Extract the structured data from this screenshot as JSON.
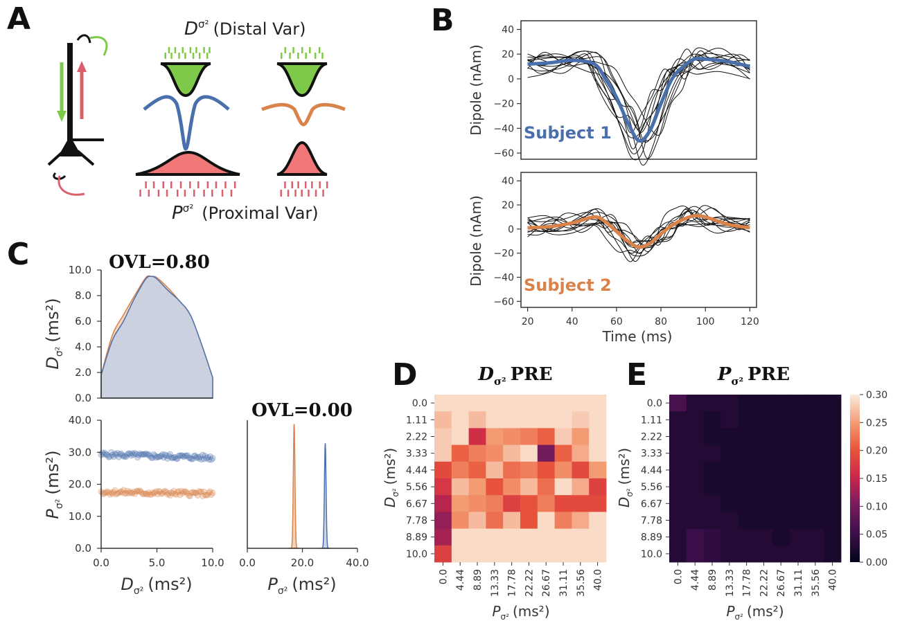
{
  "panels": {
    "A": {
      "label": "A",
      "distal_title_main": "D",
      "distal_title_sub": "σ²",
      "distal_title_rest": "(Distal Var)",
      "proximal_title_main": "P",
      "proximal_title_sub": "σ²",
      "proximal_title_rest": "(Proximal Var)"
    },
    "B": {
      "label": "B",
      "ylabel": "Dipole (nAm)",
      "xlabel": "Time (ms)",
      "subject1_label": "Subject 1",
      "subject2_label": "Subject 2",
      "yticks": [
        "40",
        "20",
        "0",
        "−20",
        "−40",
        "−60"
      ],
      "xticks": [
        "20",
        "40",
        "60",
        "80",
        "100",
        "120"
      ]
    },
    "C": {
      "label": "C",
      "ovl_top": "OVL=0.80",
      "ovl_right": "OVL=0.00",
      "top_ylabel_main": "D",
      "top_ylabel_sub": "σ²",
      "top_ylabel_unit": "(ms²)",
      "bottom_ylabel_main": "P",
      "bottom_ylabel_sub": "σ²",
      "bottom_ylabel_unit": "(ms²)",
      "xlabel_left_main": "D",
      "xlabel_left_sub": "σ²",
      "xlabel_left_unit": "(ms²)",
      "xlabel_right_main": "P",
      "xlabel_right_sub": "σ²",
      "xlabel_right_unit": "(ms²)",
      "top_yticks": [
        "10.0",
        "8.0",
        "6.0",
        "4.0",
        "2.0",
        "0.0"
      ],
      "bottom_yticks": [
        "40.0",
        "30.0",
        "20.0",
        "10.0",
        "0.0"
      ],
      "left_xticks": [
        "0.0",
        "5.0",
        "10.0"
      ],
      "right_xticks": [
        "0.0",
        "20.0",
        "40.0"
      ]
    },
    "D": {
      "label": "D",
      "title_main": "D",
      "title_sub": "σ²",
      "title_rest": "PRE",
      "ylabel_main": "D",
      "ylabel_sub": "σ²",
      "ylabel_unit": "(ms²)",
      "xlabel_main": "P",
      "xlabel_sub": "σ²",
      "xlabel_unit": "(ms²)"
    },
    "E": {
      "label": "E",
      "title_main": "P",
      "title_sub": "σ²",
      "title_rest": "PRE",
      "ylabel_main": "D",
      "ylabel_sub": "σ²",
      "ylabel_unit": "(ms²)",
      "xlabel_main": "P",
      "xlabel_sub": "σ²",
      "xlabel_unit": "(ms²)",
      "colorbar_ticks": [
        "0.30",
        "0.25",
        "0.20",
        "0.15",
        "0.10",
        "0.05",
        "0.00"
      ]
    }
  },
  "colors": {
    "blue": "#4a6fad",
    "orange": "#d9824a",
    "green": "#7fc94a",
    "red": "#d9606a",
    "dark": "#111111"
  },
  "chart_data": [
    {
      "type": "line",
      "panel": "B-top",
      "xlabel": "Time (ms)",
      "ylabel": "Dipole (nAm)",
      "xlim": [
        17,
        123
      ],
      "ylim": [
        -65,
        47
      ],
      "series": [
        {
          "name": "Subject 1",
          "x": [
            20,
            30,
            40,
            50,
            55,
            60,
            65,
            70,
            75,
            80,
            85,
            90,
            95,
            100,
            110,
            120
          ],
          "y": [
            12,
            13,
            15,
            12,
            0,
            -15,
            -35,
            -50,
            -42,
            -20,
            0,
            10,
            16,
            16,
            14,
            10
          ]
        }
      ]
    },
    {
      "type": "line",
      "panel": "B-bottom",
      "xlabel": "Time (ms)",
      "ylabel": "Dipole (nAm)",
      "xlim": [
        17,
        123
      ],
      "ylim": [
        -65,
        47
      ],
      "series": [
        {
          "name": "Subject 2",
          "x": [
            20,
            30,
            40,
            50,
            55,
            60,
            65,
            70,
            75,
            80,
            85,
            90,
            95,
            100,
            110,
            120
          ],
          "y": [
            1,
            2,
            5,
            10,
            6,
            -2,
            -10,
            -15,
            -12,
            -4,
            3,
            8,
            11,
            10,
            4,
            1
          ]
        }
      ]
    },
    {
      "type": "area",
      "panel": "C-top",
      "xlim": [
        0,
        10
      ],
      "ylim": [
        0,
        10
      ],
      "series": [
        {
          "x": [
            0,
            1,
            2,
            3,
            4,
            4.5,
            5,
            6,
            7,
            8,
            9,
            10
          ],
          "y": [
            1.8,
            4.5,
            6.0,
            7.8,
            9.3,
            9.5,
            9.3,
            8.4,
            7.6,
            6.5,
            4.2,
            1.6
          ]
        },
        {
          "x": [
            0,
            1,
            2,
            3,
            4,
            4.5,
            5,
            6,
            7,
            8,
            9,
            10
          ],
          "y": [
            1.8,
            4.9,
            6.5,
            8.0,
            9.4,
            9.5,
            9.4,
            8.6,
            7.6,
            6.4,
            4.2,
            1.6
          ]
        }
      ]
    },
    {
      "type": "scatter",
      "panel": "C-bottom-left",
      "xlim": [
        0,
        10
      ],
      "ylim": [
        0,
        40
      ],
      "series": [
        {
          "x": [
            0,
            10
          ],
          "y": [
            29.3,
            28.3
          ]
        },
        {
          "x": [
            0,
            10
          ],
          "y": [
            17.6,
            17.0
          ]
        }
      ]
    },
    {
      "type": "area",
      "panel": "C-bottom-right",
      "xlim": [
        0,
        40
      ],
      "series": [
        {
          "center": 17.0,
          "width": 0.6,
          "peak_fraction": 0.97
        },
        {
          "center": 28.3,
          "width": 0.6,
          "peak_fraction": 0.82
        }
      ]
    },
    {
      "type": "heatmap",
      "panel": "D",
      "x_categories": [
        "0.0",
        "4.44",
        "8.89",
        "13.33",
        "17.78",
        "22.22",
        "26.67",
        "31.11",
        "35.56",
        "40.0"
      ],
      "y_categories": [
        "0.0",
        "1.11",
        "2.22",
        "3.33",
        "4.44",
        "5.56",
        "6.67",
        "7.78",
        "8.89",
        "10.0"
      ],
      "vmin": 0,
      "vmax": 0.3,
      "values": [
        [
          0.29,
          0.29,
          0.29,
          0.29,
          0.29,
          0.29,
          0.29,
          0.29,
          0.29,
          0.29
        ],
        [
          0.27,
          0.29,
          0.27,
          0.29,
          0.29,
          0.29,
          0.29,
          0.29,
          0.28,
          0.29
        ],
        [
          0.28,
          0.29,
          0.16,
          0.25,
          0.24,
          0.23,
          0.21,
          0.28,
          0.25,
          0.29
        ],
        [
          0.28,
          0.21,
          0.23,
          0.24,
          0.27,
          0.29,
          0.1,
          0.21,
          0.26,
          0.29
        ],
        [
          0.19,
          0.23,
          0.21,
          0.27,
          0.22,
          0.23,
          0.2,
          0.24,
          0.19,
          0.25
        ],
        [
          0.17,
          0.27,
          0.25,
          0.2,
          0.24,
          0.27,
          0.22,
          0.29,
          0.26,
          0.18
        ],
        [
          0.14,
          0.25,
          0.24,
          0.23,
          0.18,
          0.2,
          0.23,
          0.19,
          0.19,
          0.19
        ],
        [
          0.12,
          0.24,
          0.27,
          0.22,
          0.27,
          0.2,
          0.29,
          0.23,
          0.26,
          0.29
        ],
        [
          0.13,
          0.29,
          0.29,
          0.29,
          0.29,
          0.29,
          0.29,
          0.29,
          0.29,
          0.29
        ],
        [
          0.18,
          0.29,
          0.29,
          0.29,
          0.29,
          0.29,
          0.29,
          0.29,
          0.29,
          0.29
        ]
      ]
    },
    {
      "type": "heatmap",
      "panel": "E",
      "x_categories": [
        "0.0",
        "4.44",
        "8.89",
        "13.33",
        "17.78",
        "22.22",
        "26.67",
        "31.11",
        "35.56",
        "40.0"
      ],
      "y_categories": [
        "0.0",
        "1.11",
        "2.22",
        "3.33",
        "4.44",
        "5.56",
        "6.67",
        "7.78",
        "8.89",
        "10.0"
      ],
      "vmin": 0,
      "vmax": 0.3,
      "values": [
        [
          0.06,
          0.03,
          0.03,
          0.03,
          0.02,
          0.02,
          0.02,
          0.02,
          0.02,
          0.02
        ],
        [
          0.03,
          0.03,
          0.02,
          0.03,
          0.02,
          0.02,
          0.02,
          0.02,
          0.02,
          0.02
        ],
        [
          0.03,
          0.03,
          0.02,
          0.02,
          0.02,
          0.02,
          0.02,
          0.02,
          0.02,
          0.02
        ],
        [
          0.03,
          0.03,
          0.03,
          0.02,
          0.02,
          0.02,
          0.02,
          0.02,
          0.02,
          0.02
        ],
        [
          0.03,
          0.03,
          0.02,
          0.02,
          0.02,
          0.02,
          0.02,
          0.02,
          0.02,
          0.02
        ],
        [
          0.03,
          0.03,
          0.02,
          0.02,
          0.02,
          0.02,
          0.02,
          0.02,
          0.02,
          0.02
        ],
        [
          0.03,
          0.03,
          0.03,
          0.02,
          0.02,
          0.02,
          0.02,
          0.02,
          0.02,
          0.02
        ],
        [
          0.03,
          0.03,
          0.03,
          0.03,
          0.02,
          0.02,
          0.02,
          0.02,
          0.02,
          0.02
        ],
        [
          0.03,
          0.05,
          0.04,
          0.03,
          0.03,
          0.03,
          0.02,
          0.03,
          0.03,
          0.02
        ],
        [
          0.03,
          0.05,
          0.04,
          0.03,
          0.03,
          0.03,
          0.03,
          0.03,
          0.03,
          0.02
        ]
      ]
    }
  ]
}
